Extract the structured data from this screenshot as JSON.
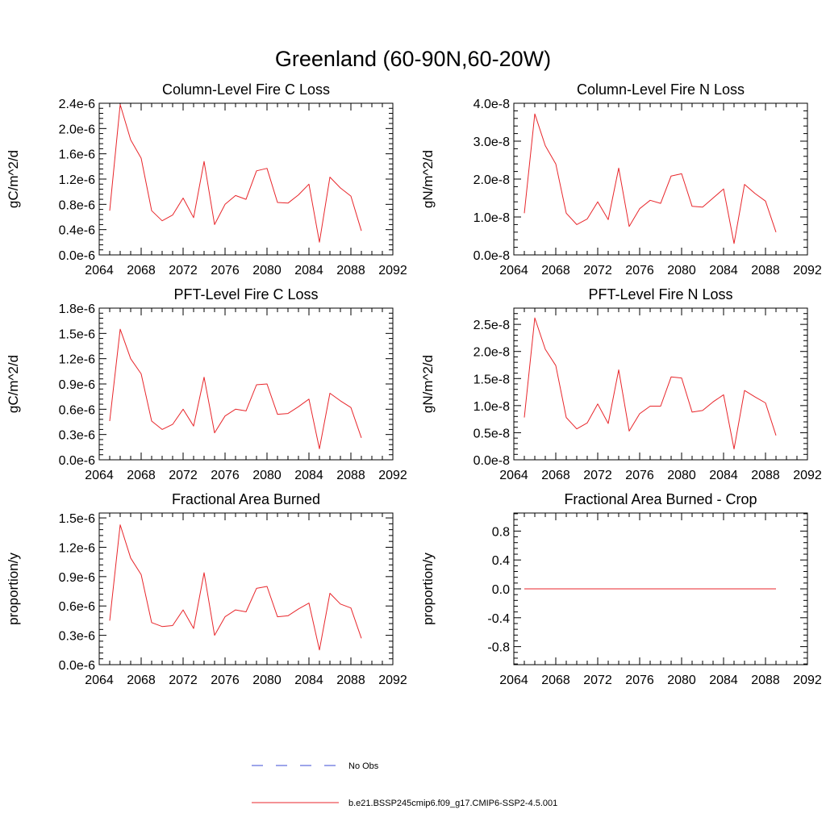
{
  "figure_title": "Greenland (60-90N,60-20W)",
  "legend": {
    "entries": [
      {
        "label": "No Obs",
        "color": "#3b4bd6",
        "style": "dashed"
      },
      {
        "label": "b.e21.BSSP245cmip6.f09_g17.CMIP6-SSP2-4.5.001",
        "color": "#e8262b",
        "style": "solid"
      }
    ]
  },
  "chart_data": [
    {
      "type": "line",
      "title": "Column-Level Fire C Loss",
      "ylabel": "gC/m^2/d",
      "xlim": [
        2064,
        2092
      ],
      "xticks": [
        "2064",
        "2068",
        "2072",
        "2076",
        "2080",
        "2084",
        "2088",
        "2092"
      ],
      "ylim": [
        0,
        2.4e-06
      ],
      "yticks": [
        0,
        4e-07,
        8e-07,
        1.2e-06,
        1.6e-06,
        2e-06,
        2.4e-06
      ],
      "ytick_labels": [
        "0.0e-6",
        "0.4e-6",
        "0.8e-6",
        "1.2e-6",
        "1.6e-6",
        "2.0e-6",
        "2.4e-6"
      ],
      "x": [
        2065,
        2066,
        2067,
        2068,
        2069,
        2070,
        2071,
        2072,
        2073,
        2074,
        2075,
        2076,
        2077,
        2078,
        2079,
        2080,
        2081,
        2082,
        2083,
        2084,
        2085,
        2086,
        2087,
        2088,
        2089
      ],
      "series": [
        {
          "color": "#e8262b",
          "values": [
            7e-07,
            2.38e-06,
            1.82e-06,
            1.53e-06,
            7e-07,
            5.4e-07,
            6.3e-07,
            9e-07,
            5.9e-07,
            1.48e-06,
            4.8e-07,
            8e-07,
            9.4e-07,
            8.8e-07,
            1.33e-06,
            1.37e-06,
            8.3e-07,
            8.2e-07,
            9.5e-07,
            1.12e-06,
            2e-07,
            1.23e-06,
            1.06e-06,
            9.3e-07,
            3.8e-07
          ]
        }
      ]
    },
    {
      "type": "line",
      "title": "Column-Level Fire N Loss",
      "ylabel": "gN/m^2/d",
      "xlim": [
        2064,
        2092
      ],
      "xticks": [
        "2064",
        "2068",
        "2072",
        "2076",
        "2080",
        "2084",
        "2088",
        "2092"
      ],
      "ylim": [
        0,
        4e-08
      ],
      "yticks": [
        0,
        1e-08,
        2e-08,
        3e-08,
        4e-08
      ],
      "ytick_labels": [
        "0.0e-8",
        "1.0e-8",
        "2.0e-8",
        "3.0e-8",
        "4.0e-8"
      ],
      "x": [
        2065,
        2066,
        2067,
        2068,
        2069,
        2070,
        2071,
        2072,
        2073,
        2074,
        2075,
        2076,
        2077,
        2078,
        2079,
        2080,
        2081,
        2082,
        2083,
        2084,
        2085,
        2086,
        2087,
        2088,
        2089
      ],
      "series": [
        {
          "color": "#e8262b",
          "values": [
            1.1e-08,
            3.72e-08,
            2.88e-08,
            2.4e-08,
            1.1e-08,
            8e-09,
            9.5e-09,
            1.4e-08,
            9.3e-09,
            2.29e-08,
            7.5e-09,
            1.22e-08,
            1.44e-08,
            1.36e-08,
            2.08e-08,
            2.14e-08,
            1.28e-08,
            1.26e-08,
            1.5e-08,
            1.74e-08,
            3e-09,
            1.86e-08,
            1.62e-08,
            1.42e-08,
            6e-09
          ]
        }
      ]
    },
    {
      "type": "line",
      "title": "PFT-Level Fire C Loss",
      "ylabel": "gC/m^2/d",
      "xlim": [
        2064,
        2092
      ],
      "xticks": [
        "2064",
        "2068",
        "2072",
        "2076",
        "2080",
        "2084",
        "2088",
        "2092"
      ],
      "ylim": [
        0,
        1.8e-06
      ],
      "yticks": [
        0,
        3e-07,
        6e-07,
        9e-07,
        1.2e-06,
        1.5e-06,
        1.8e-06
      ],
      "ytick_labels": [
        "0.0e-6",
        "0.3e-6",
        "0.6e-6",
        "0.9e-6",
        "1.2e-6",
        "1.5e-6",
        "1.8e-6"
      ],
      "x": [
        2065,
        2066,
        2067,
        2068,
        2069,
        2070,
        2071,
        2072,
        2073,
        2074,
        2075,
        2076,
        2077,
        2078,
        2079,
        2080,
        2081,
        2082,
        2083,
        2084,
        2085,
        2086,
        2087,
        2088,
        2089
      ],
      "series": [
        {
          "color": "#e8262b",
          "values": [
            4.6e-07,
            1.55e-06,
            1.2e-06,
            1.02e-06,
            4.6e-07,
            3.6e-07,
            4.2e-07,
            6e-07,
            4e-07,
            9.8e-07,
            3.2e-07,
            5.2e-07,
            6e-07,
            5.8e-07,
            8.9e-07,
            9e-07,
            5.4e-07,
            5.5e-07,
            6.3e-07,
            7.2e-07,
            1.3e-07,
            7.9e-07,
            7e-07,
            6.2e-07,
            2.6e-07
          ]
        }
      ]
    },
    {
      "type": "line",
      "title": "PFT-Level Fire N Loss",
      "ylabel": "gN/m^2/d",
      "xlim": [
        2064,
        2092
      ],
      "xticks": [
        "2064",
        "2068",
        "2072",
        "2076",
        "2080",
        "2084",
        "2088",
        "2092"
      ],
      "ylim": [
        0,
        2.8e-08
      ],
      "yticks": [
        0,
        5e-09,
        1e-08,
        1.5e-08,
        2e-08,
        2.5e-08
      ],
      "ytick_labels": [
        "0.0e-8",
        "0.5e-8",
        "1.0e-8",
        "1.5e-8",
        "2.0e-8",
        "2.5e-8"
      ],
      "x": [
        2065,
        2066,
        2067,
        2068,
        2069,
        2070,
        2071,
        2072,
        2073,
        2074,
        2075,
        2076,
        2077,
        2078,
        2079,
        2080,
        2081,
        2082,
        2083,
        2084,
        2085,
        2086,
        2087,
        2088,
        2089
      ],
      "series": [
        {
          "color": "#e8262b",
          "values": [
            7.8e-09,
            2.62e-08,
            2.04e-08,
            1.74e-08,
            7.8e-09,
            5.7e-09,
            6.8e-09,
            1.03e-08,
            6.7e-09,
            1.66e-08,
            5.3e-09,
            8.5e-09,
            9.9e-09,
            9.9e-09,
            1.53e-08,
            1.51e-08,
            8.8e-09,
            9.1e-09,
            1.07e-08,
            1.2e-08,
            2e-09,
            1.28e-08,
            1.16e-08,
            1.05e-08,
            4.5e-09
          ]
        }
      ]
    },
    {
      "type": "line",
      "title": "Fractional Area Burned",
      "ylabel": "proportion/y",
      "xlim": [
        2064,
        2092
      ],
      "xticks": [
        "2064",
        "2068",
        "2072",
        "2076",
        "2080",
        "2084",
        "2088",
        "2092"
      ],
      "ylim": [
        0,
        1.55e-06
      ],
      "yticks": [
        0,
        3e-07,
        6e-07,
        9e-07,
        1.2e-06,
        1.5e-06
      ],
      "ytick_labels": [
        "0.0e-6",
        "0.3e-6",
        "0.6e-6",
        "0.9e-6",
        "1.2e-6",
        "1.5e-6"
      ],
      "x": [
        2065,
        2066,
        2067,
        2068,
        2069,
        2070,
        2071,
        2072,
        2073,
        2074,
        2075,
        2076,
        2077,
        2078,
        2079,
        2080,
        2081,
        2082,
        2083,
        2084,
        2085,
        2086,
        2087,
        2088,
        2089
      ],
      "series": [
        {
          "color": "#e8262b",
          "values": [
            4.5e-07,
            1.43e-06,
            1.09e-06,
            9.2e-07,
            4.3e-07,
            3.9e-07,
            4e-07,
            5.6e-07,
            3.7e-07,
            9.4e-07,
            3e-07,
            4.9e-07,
            5.6e-07,
            5.4e-07,
            7.8e-07,
            8e-07,
            4.9e-07,
            5e-07,
            5.7e-07,
            6.3e-07,
            1.5e-07,
            7.3e-07,
            6.2e-07,
            5.8e-07,
            2.7e-07
          ]
        }
      ]
    },
    {
      "type": "line",
      "title": "Fractional Area Burned - Crop",
      "ylabel": "proportion/y",
      "xlim": [
        2064,
        2092
      ],
      "xticks": [
        "2064",
        "2068",
        "2072",
        "2076",
        "2080",
        "2084",
        "2088",
        "2092"
      ],
      "ylim": [
        -1.05,
        1.05
      ],
      "yticks": [
        -0.8,
        -0.4,
        0,
        0.4,
        0.8
      ],
      "ytick_labels": [
        "-0.8",
        "-0.4",
        "0.0",
        "0.4",
        "0.8"
      ],
      "x": [
        2065,
        2066,
        2067,
        2068,
        2069,
        2070,
        2071,
        2072,
        2073,
        2074,
        2075,
        2076,
        2077,
        2078,
        2079,
        2080,
        2081,
        2082,
        2083,
        2084,
        2085,
        2086,
        2087,
        2088,
        2089
      ],
      "series": [
        {
          "color": "#e8262b",
          "values": [
            0,
            0,
            0,
            0,
            0,
            0,
            0,
            0,
            0,
            0,
            0,
            0,
            0,
            0,
            0,
            0,
            0,
            0,
            0,
            0,
            0,
            0,
            0,
            0,
            0
          ]
        }
      ]
    }
  ]
}
